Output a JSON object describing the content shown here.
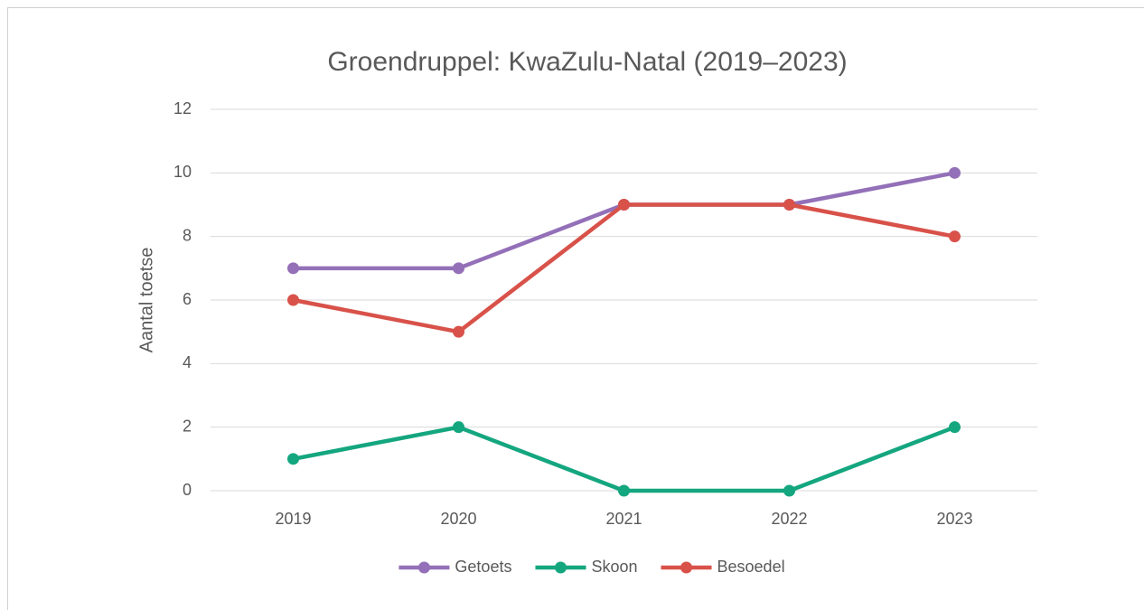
{
  "chart_data": {
    "type": "line",
    "title": "Groendruppel: KwaZulu-Natal (2019–2023)",
    "y_label": "Aantal toetse",
    "categories": [
      "2019",
      "2020",
      "2021",
      "2022",
      "2023"
    ],
    "series": [
      {
        "name": "Getoets",
        "color": "#9370b8",
        "values": [
          7,
          7,
          9,
          9,
          10
        ]
      },
      {
        "name": "Skoon",
        "color": "#14a67f",
        "values": [
          1,
          2,
          0,
          0,
          2
        ]
      },
      {
        "name": "Besoedel",
        "color": "#d8524a",
        "values": [
          6,
          5,
          9,
          9,
          8
        ]
      }
    ],
    "ylim": [
      0,
      12
    ],
    "yticks": [
      0,
      2,
      4,
      6,
      8,
      10,
      12
    ],
    "grid": true,
    "legend": "bottom"
  }
}
